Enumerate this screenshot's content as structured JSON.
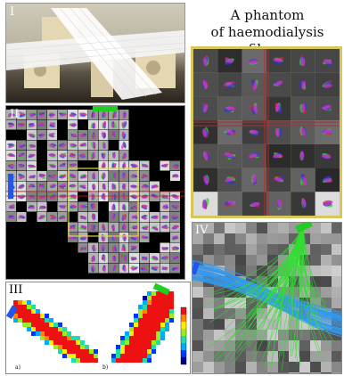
{
  "title": {
    "line1": "A phantom",
    "line2": "of haemodialysis fibers"
  },
  "panels": {
    "p1": {
      "label": "I"
    },
    "p2": {
      "label": "II"
    },
    "p3": {
      "label": "III",
      "sub_a": "a)",
      "sub_b": "b)"
    },
    "p4": {
      "label": "IV"
    }
  },
  "colors": {
    "highlight_yellow": "#e8d24a",
    "marker_green": "#22cc22",
    "marker_blue": "#2255ee",
    "tract_green": "#33dd33",
    "tract_blue": "#3399ee",
    "grid_red": "#cc2222"
  }
}
